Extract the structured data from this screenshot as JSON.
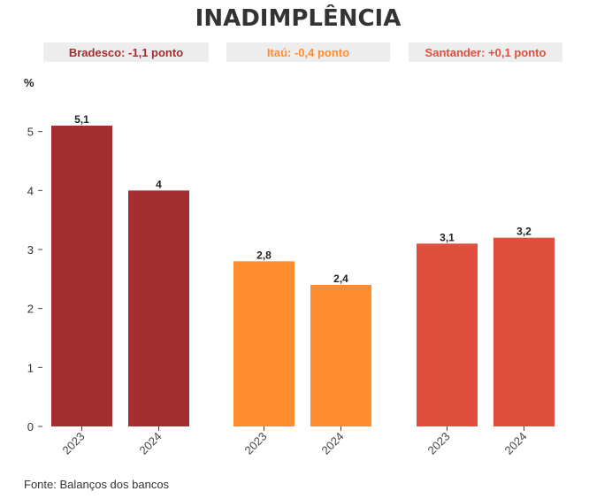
{
  "chart_data": {
    "type": "bar",
    "title": "INADIMPLÊNCIA",
    "ylabel": "%",
    "xlabel": "",
    "ylim": [
      0,
      5
    ],
    "yticks": [
      0,
      1,
      2,
      3,
      4,
      5
    ],
    "source": "Fonte: Balanços dos bancos",
    "groups": [
      {
        "bank": "Bradesco",
        "banner": "Bradesco: -1,1 ponto",
        "color": "#A32D2F",
        "bars": [
          {
            "year": "2023",
            "value": 5.1,
            "label": "5,1"
          },
          {
            "year": "2024",
            "value": 4.0,
            "label": "4"
          }
        ]
      },
      {
        "bank": "Itaú",
        "banner": "Itaú: -0,4 ponto",
        "color": "#FF8C2E",
        "bars": [
          {
            "year": "2023",
            "value": 2.8,
            "label": "2,8"
          },
          {
            "year": "2024",
            "value": 2.4,
            "label": "2,4"
          }
        ]
      },
      {
        "bank": "Santander",
        "banner": "Santander: +0,1 ponto",
        "color": "#E04E3D",
        "bars": [
          {
            "year": "2023",
            "value": 3.1,
            "label": "3,1"
          },
          {
            "year": "2024",
            "value": 3.2,
            "label": "3,2"
          }
        ]
      }
    ],
    "banner_background": "#EDEDED"
  }
}
